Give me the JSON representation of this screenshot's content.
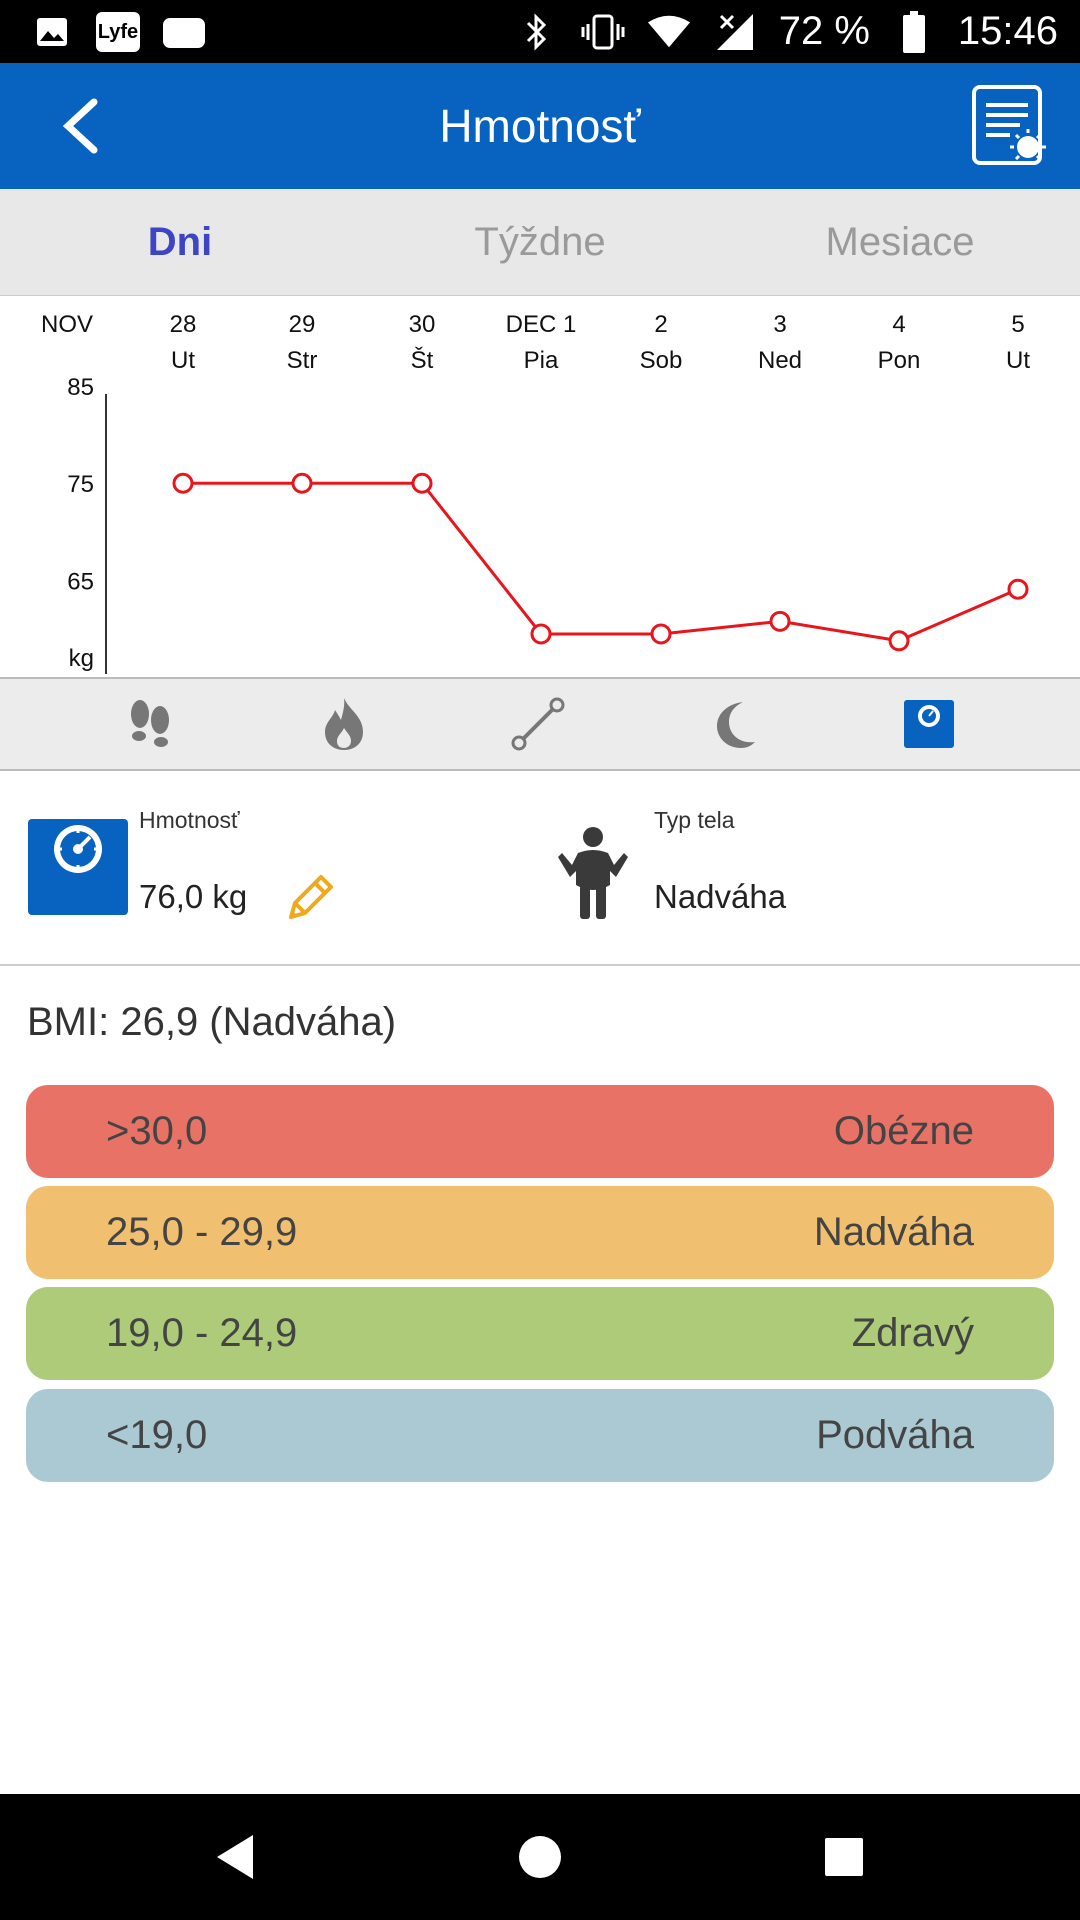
{
  "status_bar": {
    "battery": "72 %",
    "time": "15:46",
    "app_badge": "Lyfe"
  },
  "app_bar": {
    "title": "Hmotnosť"
  },
  "tabs": [
    {
      "label": "Dni",
      "active": true
    },
    {
      "label": "Týždne",
      "active": false
    },
    {
      "label": "Mesiace",
      "active": false
    }
  ],
  "chart_data": {
    "type": "line",
    "x_header": [
      {
        "top": "NOV",
        "bottom": ""
      },
      {
        "top": "28",
        "bottom": "Ut"
      },
      {
        "top": "29",
        "bottom": "Str"
      },
      {
        "top": "30",
        "bottom": "Št"
      },
      {
        "top": "DEC 1",
        "bottom": "Pia"
      },
      {
        "top": "2",
        "bottom": "Sob"
      },
      {
        "top": "3",
        "bottom": "Ned"
      },
      {
        "top": "4",
        "bottom": "Pon"
      },
      {
        "top": "5",
        "bottom": "Ut"
      }
    ],
    "y_ticks": [
      "85",
      "75",
      "65"
    ],
    "y_unit": "kg",
    "ylim": [
      56,
      85
    ],
    "series": [
      {
        "values": [
          75,
          75,
          75,
          59.5,
          59.5,
          60.8,
          58.8,
          64.1
        ]
      }
    ],
    "color": "#e8161b"
  },
  "metric_icons": [
    "steps-icon",
    "flame-icon",
    "distance-icon",
    "moon-icon",
    "scale-icon"
  ],
  "info": {
    "weight_label": "Hmotnosť",
    "weight_value": "76,0 kg",
    "body_type_label": "Typ tela",
    "body_type_value": "Nadváha"
  },
  "bmi": {
    "title": "BMI: 26,9 (Nadváha)",
    "rows": [
      {
        "range": ">30,0",
        "category": "Obézne",
        "color": "#e87266"
      },
      {
        "range": "25,0 - 29,9",
        "category": "Nadváha",
        "color": "#f0c070"
      },
      {
        "range": "19,0 - 24,9",
        "category": "Zdravý",
        "color": "#adcb79"
      },
      {
        "range": "<19,0",
        "category": "Podváha",
        "color": "#abc9d3"
      }
    ]
  }
}
